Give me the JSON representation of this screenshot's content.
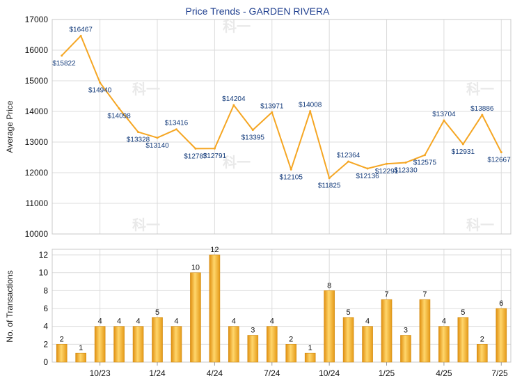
{
  "chart_data": [
    {
      "type": "line",
      "title": "Price Trends - GARDEN RIVERA",
      "ylabel": "Average Price",
      "ylim": [
        10000,
        17000
      ],
      "yticks": [
        10000,
        11000,
        12000,
        13000,
        14000,
        15000,
        16000,
        17000
      ],
      "grid": true,
      "color": "#f5a623",
      "points": [
        {
          "x": 1,
          "y": 15822,
          "label": "$15822"
        },
        {
          "x": 2,
          "y": 16467,
          "label": "$16467"
        },
        {
          "x": 3,
          "y": 14940,
          "label": "$14940"
        },
        {
          "x": 4,
          "y": 14098,
          "label": "$14098"
        },
        {
          "x": 5,
          "y": 13328,
          "label": "$13328"
        },
        {
          "x": 6,
          "y": 13140,
          "label": "$13140"
        },
        {
          "x": 7,
          "y": 13416,
          "label": "$13416"
        },
        {
          "x": 8,
          "y": 12787,
          "label": "$12787"
        },
        {
          "x": 9,
          "y": 12791,
          "label": "$12791"
        },
        {
          "x": 10,
          "y": 14204,
          "label": "$14204"
        },
        {
          "x": 11,
          "y": 13395,
          "label": "$13395"
        },
        {
          "x": 12,
          "y": 13971,
          "label": "$13971"
        },
        {
          "x": 13,
          "y": 12105,
          "label": "$12105"
        },
        {
          "x": 14,
          "y": 14008,
          "label": "$14008"
        },
        {
          "x": 15,
          "y": 11825,
          "label": "$11825"
        },
        {
          "x": 16,
          "y": 12364,
          "label": "$12364"
        },
        {
          "x": 17,
          "y": 12136,
          "label": "$12136"
        },
        {
          "x": 18,
          "y": 12291,
          "label": "$12291"
        },
        {
          "x": 19,
          "y": 12330,
          "label": "$12330"
        },
        {
          "x": 20,
          "y": 12575,
          "label": "$12575"
        },
        {
          "x": 21,
          "y": 13704,
          "label": "$13704"
        },
        {
          "x": 22,
          "y": 12931,
          "label": "$12931"
        },
        {
          "x": 23,
          "y": 13886,
          "label": "$13886"
        },
        {
          "x": 24,
          "y": 12667,
          "label": "$12667"
        }
      ]
    },
    {
      "type": "bar",
      "ylabel": "No. of Transactions",
      "ylim": [
        0,
        12
      ],
      "yticks": [
        0,
        2,
        4,
        6,
        8,
        10,
        12
      ],
      "grid": true,
      "color": "#f5a623",
      "values": [
        2,
        1,
        4,
        4,
        4,
        5,
        4,
        10,
        12,
        4,
        3,
        4,
        2,
        1,
        8,
        5,
        4,
        7,
        3,
        7,
        4,
        5,
        2,
        6
      ],
      "xticks": [
        {
          "x": 3,
          "label": "10/23"
        },
        {
          "x": 6,
          "label": "1/24"
        },
        {
          "x": 9,
          "label": "4/24"
        },
        {
          "x": 12,
          "label": "7/24"
        },
        {
          "x": 15,
          "label": "10/24"
        },
        {
          "x": 18,
          "label": "1/25"
        },
        {
          "x": 21,
          "label": "4/25"
        },
        {
          "x": 24,
          "label": "7/25"
        }
      ]
    }
  ]
}
